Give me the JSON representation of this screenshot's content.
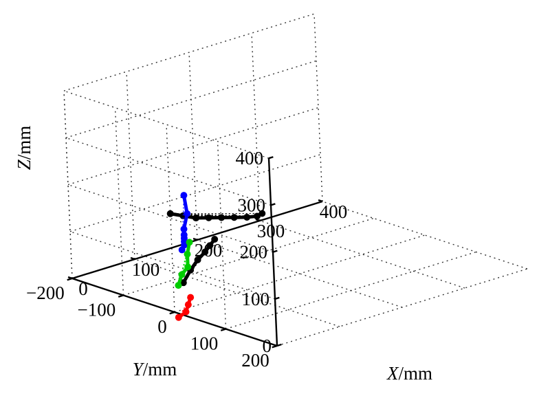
{
  "chart_data": {
    "type": "line3d",
    "title": "",
    "axes": {
      "x": {
        "label_var": "X",
        "label_unit": "/mm",
        "ticks": [
          "0",
          "100",
          "200",
          "300",
          "400"
        ],
        "range": [
          0,
          400
        ]
      },
      "y": {
        "label_var": "Y",
        "label_unit": "/mm",
        "ticks": [
          "200",
          "100",
          "0",
          "−100",
          "−200"
        ],
        "range": [
          -200,
          200
        ]
      },
      "z": {
        "label_var": "Z",
        "label_unit": "/mm",
        "ticks": [
          "0",
          "100",
          "200",
          "300",
          "400"
        ],
        "range": [
          0,
          400
        ]
      }
    },
    "grid": true,
    "series": [
      {
        "color": "#000000",
        "points": [
          [
            0,
            0,
            210
          ],
          [
            40,
            -25,
            180
          ],
          [
            80,
            -50,
            150
          ],
          [
            120,
            -75,
            125
          ],
          [
            160,
            -100,
            100
          ],
          [
            200,
            -125,
            75
          ],
          [
            240,
            -150,
            50
          ],
          [
            280,
            -180,
            25
          ],
          [
            320,
            -220,
            0
          ]
        ]
      },
      {
        "color": "#000000",
        "points": [
          [
            0,
            20,
            70
          ],
          [
            20,
            10,
            85
          ],
          [
            40,
            0,
            95
          ],
          [
            60,
            -10,
            100
          ],
          [
            80,
            -25,
            100
          ],
          [
            100,
            -40,
            100
          ]
        ]
      },
      {
        "color": "#0000ff",
        "points": [
          [
            0,
            20,
            140
          ],
          [
            20,
            0,
            135
          ],
          [
            40,
            -25,
            125
          ],
          [
            60,
            -50,
            115
          ],
          [
            80,
            -75,
            105
          ],
          [
            100,
            -100,
            100
          ],
          [
            130,
            -130,
            110
          ],
          [
            150,
            -160,
            130
          ]
        ]
      },
      {
        "color": "#00cc00",
        "points": [
          [
            -40,
            60,
            95
          ],
          [
            -10,
            30,
            95
          ],
          [
            20,
            5,
            90
          ],
          [
            40,
            -20,
            100
          ],
          [
            60,
            -40,
            110
          ]
        ]
      },
      {
        "color": "#ff0000",
        "points": [
          [
            -10,
            20,
            0
          ],
          [
            10,
            10,
            0
          ],
          [
            30,
            -10,
            0
          ],
          [
            50,
            -30,
            0
          ]
        ]
      }
    ]
  }
}
